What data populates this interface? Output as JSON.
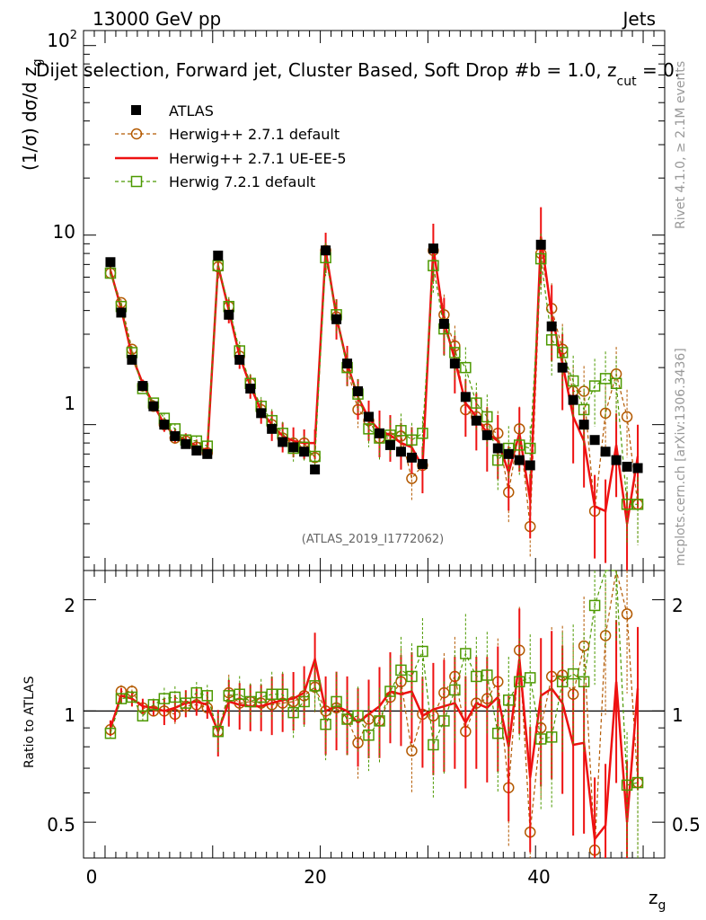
{
  "header": {
    "energy_label": "13000 GeV pp",
    "process_label": "Jets",
    "main_title": "Dijet selection, Forward jet, Cluster Based, Soft Drop #b = 1.0, z",
    "main_title_sub": "cut",
    "main_title_end": " = 0.",
    "analysis_id": "(ATLAS_2019_I1772062)"
  },
  "side": {
    "rivet_label": "Rivet 4.1.0, ≥ 2.1M events",
    "url_label": "mcplots.cern.ch [arXiv:1306.3436]"
  },
  "axes": {
    "top_ylabel": "(1/σ) dσ/d z",
    "top_ylabel_sub": "g",
    "ratio_ylabel": "Ratio to ATLAS",
    "xlabel": "z",
    "xlabel_sub": "g",
    "top_ytick_10": "10",
    "top_ytick_1": "1",
    "top_ytick_100": "10",
    "top_ytick_100_exp": "2",
    "ratio_ticks": [
      "0.5",
      "1",
      "2"
    ],
    "x_ticks": [
      "0",
      "20",
      "40"
    ]
  },
  "legend": [
    {
      "label": "ATLAS",
      "color": "#000000",
      "marker": "filled-square"
    },
    {
      "label": "Herwig++ 2.7.1 default",
      "color": "#b35900",
      "marker": "open-circle"
    },
    {
      "label": "Herwig++ 2.7.1 UE-EE-5",
      "color": "#ee1111",
      "marker": "none"
    },
    {
      "label": "Herwig 7.2.1 default",
      "color": "#4c9900",
      "marker": "open-square"
    }
  ],
  "chart_data": {
    "type": "line",
    "title": "Dijet selection, Forward jet, Cluster Based, Soft Drop #b = 1.0, z_cut = 0.",
    "xlabel": "z_g",
    "ylabel": "(1/σ) dσ/d z_g",
    "xlim": [
      -2,
      52
    ],
    "ylim": [
      0.17,
      120
    ],
    "yscale": "log",
    "ratio_ylim": [
      0.4,
      2.4
    ],
    "ratio_ylabel": "Ratio to ATLAS",
    "x": [
      0.5,
      1.5,
      2.5,
      3.5,
      4.5,
      5.5,
      6.5,
      7.5,
      8.5,
      9.5,
      10.5,
      11.5,
      12.5,
      13.5,
      14.5,
      15.5,
      16.5,
      17.5,
      18.5,
      19.5,
      20.5,
      21.5,
      22.5,
      23.5,
      24.5,
      25.5,
      26.5,
      27.5,
      28.5,
      29.5,
      30.5,
      31.5,
      32.5,
      33.5,
      34.5,
      35.5,
      36.5,
      37.5,
      38.5,
      39.5,
      40.5,
      41.5,
      42.5,
      43.5,
      44.5,
      45.5,
      46.5,
      47.5,
      48.5,
      49.5
    ],
    "series": [
      {
        "name": "ATLAS",
        "color": "#000000",
        "values": [
          7.2,
          3.9,
          2.2,
          1.6,
          1.25,
          1.0,
          0.87,
          0.79,
          0.73,
          0.7,
          7.8,
          3.8,
          2.2,
          1.55,
          1.15,
          0.95,
          0.81,
          0.76,
          0.72,
          0.58,
          8.3,
          3.6,
          2.1,
          1.5,
          1.1,
          0.9,
          0.78,
          0.72,
          0.67,
          0.62,
          8.5,
          3.4,
          2.1,
          1.4,
          1.05,
          0.88,
          0.75,
          0.7,
          0.65,
          0.61,
          8.9,
          3.3,
          2.0,
          1.35,
          1.0,
          0.83,
          0.72,
          0.65,
          0.6,
          0.59
        ]
      },
      {
        "name": "Herwig++ 2.7.1 default",
        "color": "#b35900",
        "values": [
          6.3,
          4.4,
          2.5,
          1.6,
          1.25,
          1.0,
          0.85,
          0.82,
          0.76,
          0.71,
          6.8,
          4.2,
          2.3,
          1.65,
          1.2,
          1.0,
          0.85,
          0.8,
          0.8,
          0.67,
          8.3,
          3.7,
          2.0,
          1.2,
          1.05,
          0.85,
          0.85,
          0.87,
          0.52,
          0.61,
          8.3,
          3.8,
          2.6,
          1.2,
          1.1,
          0.95,
          0.9,
          0.44,
          0.95,
          0.29,
          8.0,
          4.1,
          2.5,
          1.5,
          1.5,
          0.35,
          1.15,
          1.85,
          1.1,
          0.38
        ]
      },
      {
        "name": "Herwig++ 2.7.1 UE-EE-5",
        "color": "#ee1111",
        "values": [
          6.5,
          4.1,
          2.3,
          1.65,
          1.28,
          1.0,
          0.88,
          0.83,
          0.77,
          0.73,
          6.9,
          4.0,
          2.3,
          1.6,
          1.18,
          1.0,
          0.87,
          0.82,
          0.8,
          0.8,
          8.3,
          3.7,
          2.1,
          1.4,
          1.08,
          0.93,
          0.88,
          0.8,
          0.76,
          0.6,
          8.6,
          3.5,
          2.2,
          1.3,
          1.1,
          0.9,
          0.82,
          0.56,
          0.9,
          0.4,
          9.8,
          3.8,
          2.1,
          1.1,
          0.82,
          0.37,
          0.35,
          0.78,
          0.3,
          0.68
        ]
      },
      {
        "name": "Herwig 7.2.1 default",
        "color": "#4c9900",
        "values": [
          6.3,
          4.2,
          2.4,
          1.55,
          1.3,
          1.08,
          0.95,
          0.83,
          0.82,
          0.77,
          6.9,
          4.2,
          2.45,
          1.65,
          1.25,
          1.05,
          0.9,
          0.75,
          0.76,
          0.68,
          7.6,
          3.8,
          2.0,
          1.45,
          0.95,
          0.85,
          0.88,
          0.93,
          0.83,
          0.9,
          6.9,
          3.2,
          2.4,
          2.0,
          1.3,
          1.1,
          0.65,
          0.75,
          0.78,
          0.75,
          7.5,
          2.8,
          2.4,
          1.7,
          1.2,
          1.6,
          1.75,
          1.65,
          0.38,
          0.38
        ]
      }
    ],
    "ratios": [
      {
        "name": "Herwig++ 2.7.1 default",
        "values": [
          0.89,
          1.13,
          1.13,
          1.02,
          1.0,
          1.0,
          0.98,
          1.03,
          1.04,
          1.02,
          0.88,
          1.12,
          1.05,
          1.06,
          1.05,
          1.04,
          1.05,
          1.06,
          1.1,
          1.16,
          1.0,
          1.02,
          0.95,
          0.82,
          0.95,
          0.94,
          1.09,
          1.2,
          0.78,
          0.98,
          0.97,
          1.12,
          1.24,
          0.88,
          1.05,
          1.08,
          1.2,
          0.62,
          1.46,
          0.47,
          0.9,
          1.24,
          1.25,
          1.11,
          1.5,
          0.42,
          1.6,
          2.85,
          1.83,
          0.64
        ]
      },
      {
        "name": "Herwig++ 2.7.1 UE-EE-5",
        "values": [
          0.9,
          1.1,
          1.08,
          1.03,
          1.02,
          1.0,
          1.02,
          1.05,
          1.06,
          1.04,
          0.88,
          1.06,
          1.04,
          1.03,
          1.03,
          1.05,
          1.07,
          1.08,
          1.12,
          1.38,
          1.0,
          1.03,
          1.0,
          0.93,
          0.98,
          1.03,
          1.13,
          1.11,
          1.13,
          0.97,
          1.01,
          1.03,
          1.05,
          0.93,
          1.05,
          1.02,
          1.09,
          0.8,
          1.38,
          0.66,
          1.1,
          1.15,
          1.05,
          0.81,
          0.82,
          0.45,
          0.49,
          1.2,
          0.5,
          1.15
        ]
      },
      {
        "name": "Herwig 7.2.1 default",
        "values": [
          0.87,
          1.08,
          1.09,
          0.97,
          1.04,
          1.08,
          1.09,
          1.05,
          1.12,
          1.1,
          0.88,
          1.1,
          1.11,
          1.06,
          1.09,
          1.11,
          1.11,
          0.99,
          1.06,
          1.17,
          0.92,
          1.06,
          0.95,
          0.97,
          0.86,
          0.94,
          1.13,
          1.29,
          1.24,
          1.45,
          0.81,
          0.94,
          1.14,
          1.43,
          1.24,
          1.25,
          0.87,
          1.07,
          1.2,
          1.23,
          0.84,
          0.85,
          1.2,
          1.26,
          1.2,
          1.93,
          2.43,
          2.54,
          0.63,
          0.64
        ]
      }
    ]
  }
}
